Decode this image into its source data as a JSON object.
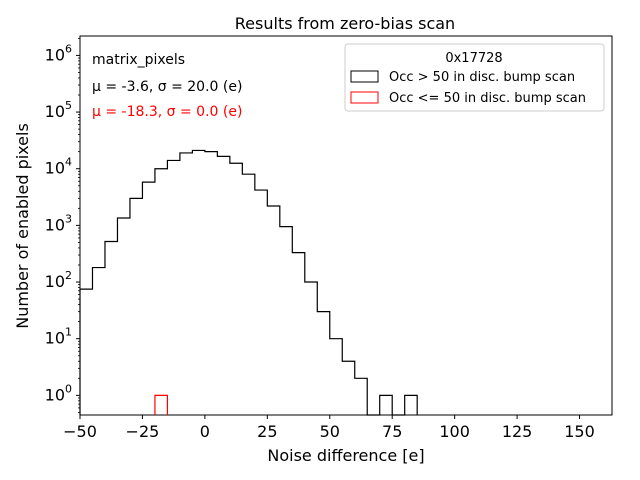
{
  "chart_data": {
    "type": "histogram",
    "title": "Results from zero-bias scan",
    "xlabel": "Noise difference [e]",
    "ylabel": "Number of enabled pixels",
    "xlim": [
      -50,
      163
    ],
    "ylim_log": [
      0.45,
      2200000
    ],
    "yscale": "log",
    "xticks": [
      -50,
      -25,
      0,
      25,
      50,
      75,
      100,
      125,
      150
    ],
    "xtick_labels": [
      "−50",
      "−25",
      "0",
      "25",
      "50",
      "75",
      "100",
      "125",
      "150"
    ],
    "yticks": [
      {
        "base": "10",
        "exp": "0",
        "value": 1
      },
      {
        "base": "10",
        "exp": "1",
        "value": 10
      },
      {
        "base": "10",
        "exp": "2",
        "value": 100
      },
      {
        "base": "10",
        "exp": "3",
        "value": 1000
      },
      {
        "base": "10",
        "exp": "4",
        "value": 10000
      },
      {
        "base": "10",
        "exp": "5",
        "value": 100000
      },
      {
        "base": "10",
        "exp": "6",
        "value": 1000000
      }
    ],
    "bin_width": 5,
    "annotations": {
      "group": "matrix_pixels",
      "stats_black": "μ = -3.6, σ = 20.0 (e)",
      "stats_red": "μ = -18.3, σ = 0.0 (e)"
    },
    "legend": {
      "title": "0x17728",
      "placement": "top-right",
      "entries": [
        "Occ > 50 in disc. bump scan",
        "Occ <= 50 in disc. bump scan"
      ]
    },
    "series": [
      {
        "name": "Occ > 50 in disc. bump scan",
        "color": "#000000",
        "bins": [
          {
            "x0": -50,
            "x1": -45,
            "count": 75
          },
          {
            "x0": -45,
            "x1": -40,
            "count": 180
          },
          {
            "x0": -40,
            "x1": -35,
            "count": 520
          },
          {
            "x0": -35,
            "x1": -30,
            "count": 1350
          },
          {
            "x0": -30,
            "x1": -25,
            "count": 3000
          },
          {
            "x0": -25,
            "x1": -20,
            "count": 5800
          },
          {
            "x0": -20,
            "x1": -15,
            "count": 10000
          },
          {
            "x0": -15,
            "x1": -10,
            "count": 14000
          },
          {
            "x0": -10,
            "x1": -5,
            "count": 19000
          },
          {
            "x0": -5,
            "x1": 0,
            "count": 21000
          },
          {
            "x0": 0,
            "x1": 5,
            "count": 20000
          },
          {
            "x0": 5,
            "x1": 10,
            "count": 16500
          },
          {
            "x0": 10,
            "x1": 15,
            "count": 12500
          },
          {
            "x0": 15,
            "x1": 20,
            "count": 8000
          },
          {
            "x0": 20,
            "x1": 25,
            "count": 4200
          },
          {
            "x0": 25,
            "x1": 30,
            "count": 2200
          },
          {
            "x0": 30,
            "x1": 35,
            "count": 950
          },
          {
            "x0": 35,
            "x1": 40,
            "count": 330
          },
          {
            "x0": 40,
            "x1": 45,
            "count": 100
          },
          {
            "x0": 45,
            "x1": 50,
            "count": 30
          },
          {
            "x0": 50,
            "x1": 55,
            "count": 10
          },
          {
            "x0": 55,
            "x1": 60,
            "count": 4
          },
          {
            "x0": 60,
            "x1": 65,
            "count": 2
          },
          {
            "x0": 65,
            "x1": 70,
            "count": 0
          },
          {
            "x0": 70,
            "x1": 75,
            "count": 1
          },
          {
            "x0": 75,
            "x1": 80,
            "count": 0
          },
          {
            "x0": 80,
            "x1": 85,
            "count": 1
          }
        ]
      },
      {
        "name": "Occ <= 50 in disc. bump scan",
        "color": "#ff0000",
        "bins": [
          {
            "x0": -20,
            "x1": -15,
            "count": 1
          }
        ]
      }
    ]
  }
}
